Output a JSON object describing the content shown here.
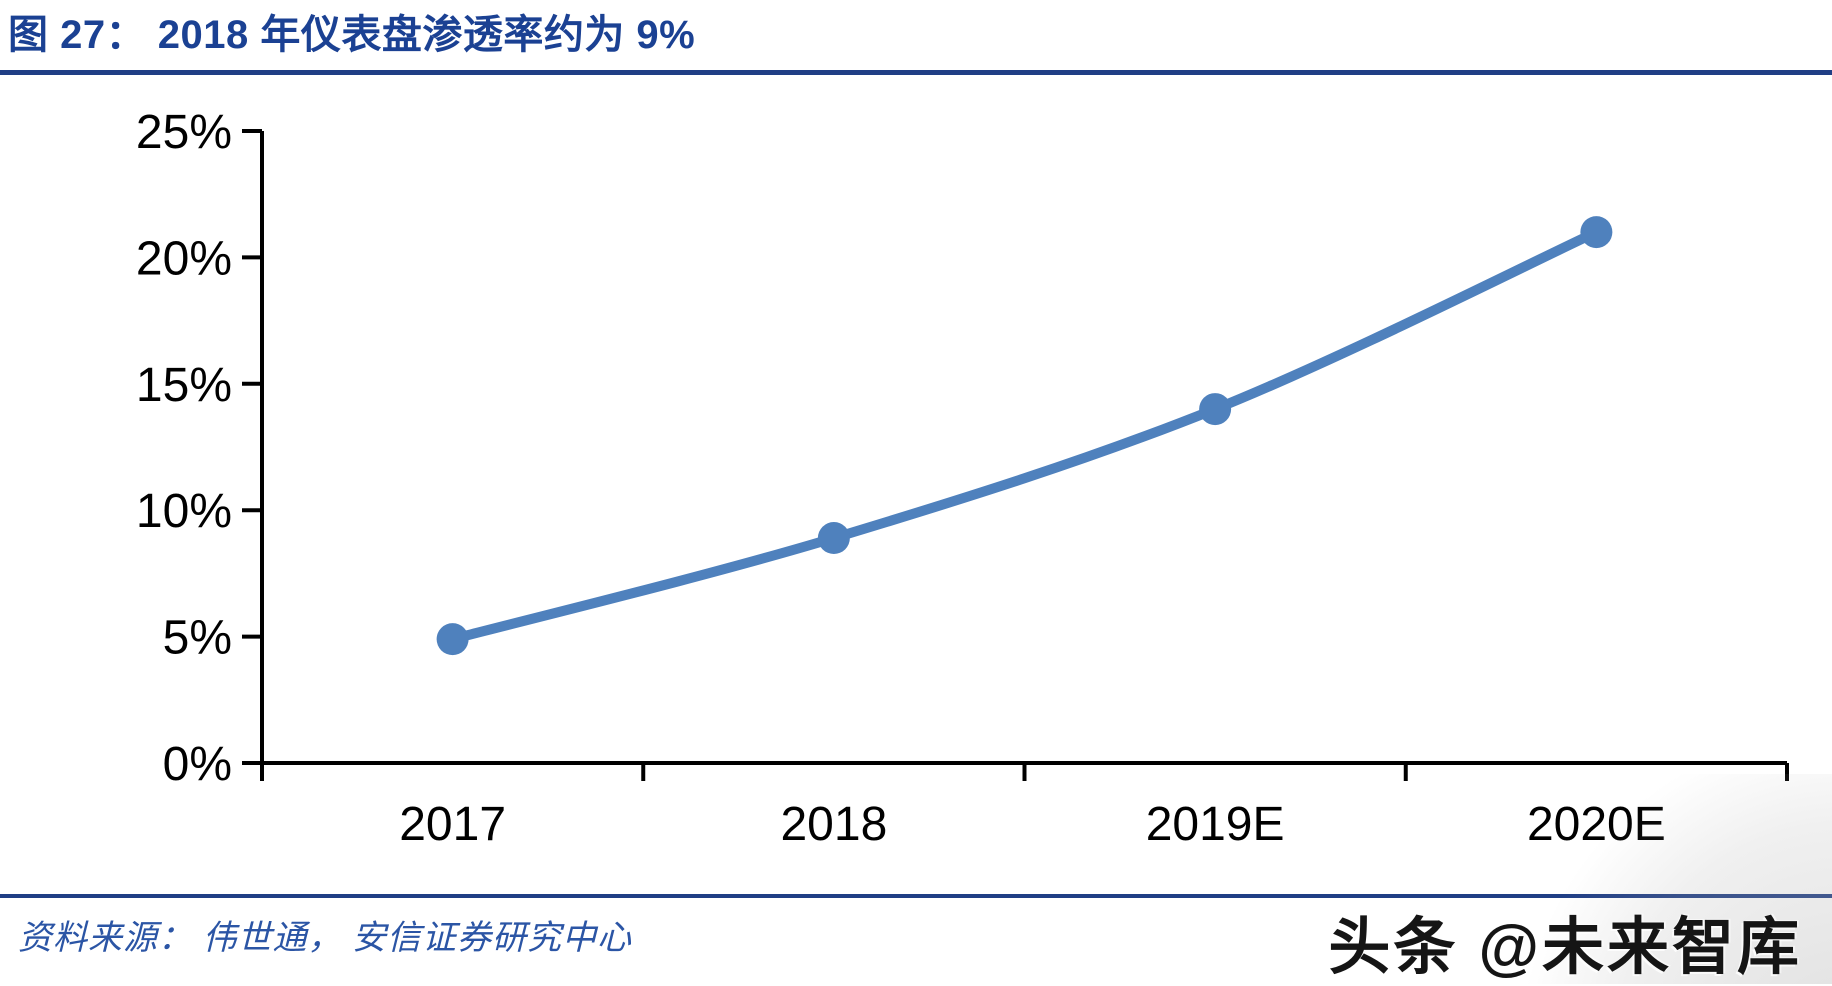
{
  "figure": {
    "title": "图 27：  2018 年仪表盘渗透率约为 9%",
    "source_label": "资料来源：  伟世通，  安信证券研究中心",
    "watermark": "头条 @未来智库"
  },
  "colors": {
    "title_blue": "#1B4193",
    "rule_blue": "#203E85",
    "source_blue": "#2B55A5",
    "series_blue": "#4F81BD",
    "axis_black": "#000000"
  },
  "chart_data": {
    "type": "line",
    "title": "图 27：2018 年仪表盘渗透率约为 9%",
    "categories": [
      "2017",
      "2018",
      "2019E",
      "2020E"
    ],
    "values": [
      4.9,
      8.9,
      14.0,
      21.0
    ],
    "value_unit": "%",
    "xlabel": "",
    "ylabel": "",
    "ylim": [
      0,
      25
    ],
    "y_tick_step": 5,
    "y_tick_labels": [
      "0%",
      "5%",
      "10%",
      "15%",
      "20%",
      "25%"
    ],
    "grid": false,
    "legend": "none",
    "smooth": true,
    "markers": true,
    "series_color": "#4F81BD"
  }
}
